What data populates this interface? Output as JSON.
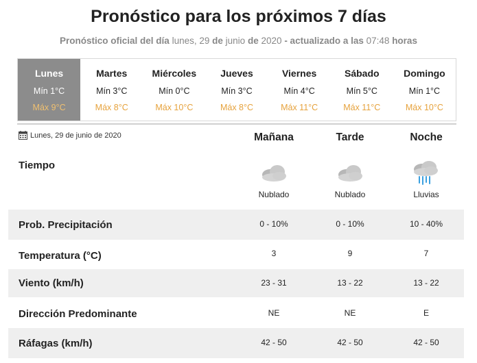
{
  "header": {
    "title": "Pronóstico para los próximos 7 días",
    "subtitle_part1": "Pronóstico oficial del día",
    "subtitle_date": "lunes, 29",
    "subtitle_de": "de",
    "subtitle_month": "junio",
    "subtitle_de2": "de",
    "subtitle_year": "2020",
    "subtitle_part2": "- actualizado a las",
    "subtitle_time": "07:48",
    "subtitle_part3": "horas"
  },
  "days": [
    {
      "name": "Lunes",
      "min": "Mín 1°C",
      "max": "Máx 9°C"
    },
    {
      "name": "Martes",
      "min": "Mín 3°C",
      "max": "Máx 8°C"
    },
    {
      "name": "Miércoles",
      "min": "Mín 0°C",
      "max": "Máx 10°C"
    },
    {
      "name": "Jueves",
      "min": "Mín 3°C",
      "max": "Máx 8°C"
    },
    {
      "name": "Viernes",
      "min": "Mín 4°C",
      "max": "Máx 11°C"
    },
    {
      "name": "Sábado",
      "min": "Mín 5°C",
      "max": "Máx 11°C"
    },
    {
      "name": "Domingo",
      "min": "Mín 1°C",
      "max": "Máx 10°C"
    }
  ],
  "detail": {
    "date": "Lunes, 29 de junio de 2020",
    "periods": [
      "Mañana",
      "Tarde",
      "Noche"
    ],
    "tiempo_label": "Tiempo",
    "conditions": [
      "Nublado",
      "Nublado",
      "Lluvias"
    ],
    "condition_icons": [
      "cloudy-icon",
      "cloudy-icon",
      "rain-icon"
    ],
    "rows": [
      {
        "label": "Prob. Precipitación",
        "values": [
          "0 - 10%",
          "0 - 10%",
          "10 - 40%"
        ]
      },
      {
        "label": "Temperatura (°C)",
        "values": [
          "3",
          "9",
          "7"
        ]
      },
      {
        "label": "Viento (km/h)",
        "values": [
          "23 - 31",
          "13 - 22",
          "13 - 22"
        ]
      },
      {
        "label": "Dirección Predominante",
        "values": [
          "NE",
          "NE",
          "E"
        ]
      },
      {
        "label": "Ráfagas (km/h)",
        "values": [
          "42 - 50",
          "42 - 50",
          "42 - 50"
        ]
      }
    ]
  },
  "colors": {
    "active_day_bg": "#8c8c8c",
    "max_temp": "#e6a23c",
    "band_bg": "#efefef",
    "rain": "#3aa0e0"
  }
}
